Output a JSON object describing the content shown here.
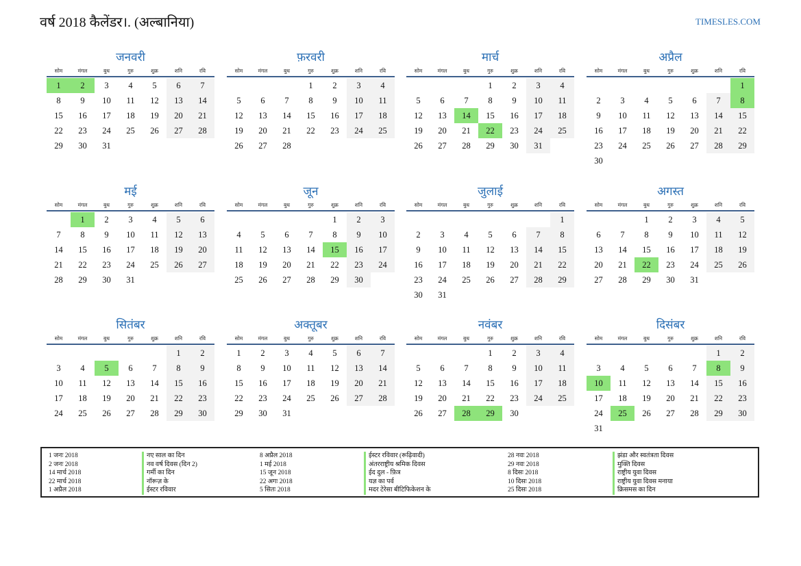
{
  "header": {
    "title": "वर्ष 2018 कैलेंडर।. (अल्बानिया)",
    "site": "TIMESLES.COM"
  },
  "weekdays": [
    "सोम",
    "मंगल",
    "बुध",
    "गुरु",
    "शुक्र",
    "शनि",
    "रवि"
  ],
  "months": [
    {
      "name": "जनवरी",
      "offset": 0,
      "days": 31,
      "holidays": [
        1,
        2
      ]
    },
    {
      "name": "फ़रवरी",
      "offset": 3,
      "days": 28,
      "holidays": []
    },
    {
      "name": "मार्च",
      "offset": 3,
      "days": 31,
      "holidays": [
        14,
        22
      ]
    },
    {
      "name": "अप्रैल",
      "offset": 6,
      "days": 30,
      "holidays": [
        1,
        8
      ]
    },
    {
      "name": "मई",
      "offset": 1,
      "days": 31,
      "holidays": [
        1
      ]
    },
    {
      "name": "जून",
      "offset": 4,
      "days": 30,
      "holidays": [
        15
      ]
    },
    {
      "name": "जुलाई",
      "offset": 6,
      "days": 31,
      "holidays": []
    },
    {
      "name": "अगस्त",
      "offset": 2,
      "days": 31,
      "holidays": [
        22
      ]
    },
    {
      "name": "सितंबर",
      "offset": 5,
      "days": 30,
      "holidays": [
        5
      ]
    },
    {
      "name": "अक्तूबर",
      "offset": 0,
      "days": 31,
      "holidays": []
    },
    {
      "name": "नवंबर",
      "offset": 3,
      "days": 30,
      "holidays": [
        28,
        29
      ]
    },
    {
      "name": "दिसंबर",
      "offset": 5,
      "days": 31,
      "holidays": [
        8,
        10,
        25
      ]
    }
  ],
  "legend": [
    [
      {
        "date": "1 जनः 2018",
        "name": "नए साल का दिन"
      },
      {
        "date": "2 जनः 2018",
        "name": "नव वर्ष दिवस (दिन 2)"
      },
      {
        "date": "14 मार्च 2018",
        "name": "गर्मी का दिन"
      },
      {
        "date": "22 मार्च 2018",
        "name": "नॉरूज़ के"
      },
      {
        "date": "1 अप्रैल 2018",
        "name": "ईस्टर रविवार"
      }
    ],
    [
      {
        "date": "8 अप्रैल 2018",
        "name": "ईस्टर रविवार (रूढ़िवादी)"
      },
      {
        "date": "1 मई 2018",
        "name": "अंतरराष्ट्रीय श्रमिक दिवस"
      },
      {
        "date": "15 जून 2018",
        "name": "ईद दुल - फ़ित्र"
      },
      {
        "date": "22 अगः 2018",
        "name": "यज्ञ का पर्व"
      },
      {
        "date": "5 सितः 2018",
        "name": "मदर टेरेसा बीटिफिकेशन के"
      }
    ],
    [
      {
        "date": "28 नवः 2018",
        "name": "झंडा और स्वतंत्रता दिवस"
      },
      {
        "date": "29 नवः 2018",
        "name": "मुक्ति दिवस"
      },
      {
        "date": "8 दिसः 2018",
        "name": "राष्ट्रीय युवा दिवस"
      },
      {
        "date": "10 दिसः 2018",
        "name": "राष्ट्रीय युवा दिवस मनाया"
      },
      {
        "date": "25 दिसः 2018",
        "name": "क्रिसमस का दिन"
      }
    ]
  ]
}
